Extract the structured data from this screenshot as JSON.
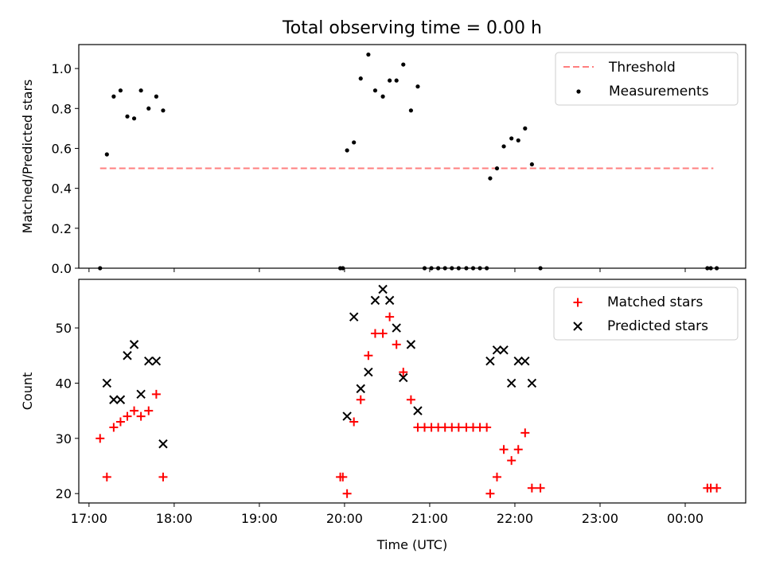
{
  "title": "Total observing time = 0.00 h",
  "colors": {
    "threshold": "#ff7f7f",
    "measurement": "#000000",
    "matched": "#ff0000",
    "predicted": "#000000"
  },
  "chart_data": [
    {
      "type": "scatter",
      "ylabel": "Matched/Predicted stars",
      "xlim": [
        16.88,
        24.71
      ],
      "ylim": [
        0.0,
        1.12
      ],
      "yticks": [
        {
          "v": 0.0,
          "label": "0.0"
        },
        {
          "v": 0.2,
          "label": "0.2"
        },
        {
          "v": 0.4,
          "label": "0.4"
        },
        {
          "v": 0.6,
          "label": "0.6"
        },
        {
          "v": 0.8,
          "label": "0.8"
        },
        {
          "v": 1.0,
          "label": "1.0"
        }
      ],
      "legend": {
        "placement": "upper right",
        "entries": [
          "Threshold",
          "Measurements"
        ]
      },
      "threshold": {
        "name": "Threshold",
        "x": [
          17.13,
          24.33
        ],
        "y": 0.5
      },
      "series": [
        {
          "name": "Measurements",
          "x": [
            17.13,
            17.21,
            17.29,
            17.37,
            17.45,
            17.53,
            17.61,
            17.7,
            17.79,
            17.87,
            19.95,
            19.98,
            20.03,
            20.11,
            20.19,
            20.28,
            20.36,
            20.45,
            20.53,
            20.61,
            20.69,
            20.78,
            20.86,
            20.94,
            21.02,
            21.1,
            21.18,
            21.26,
            21.34,
            21.43,
            21.51,
            21.59,
            21.67,
            21.71,
            21.79,
            21.87,
            21.96,
            22.04,
            22.12,
            22.2,
            22.3,
            24.26,
            24.3,
            24.37
          ],
          "y": [
            0.0,
            0.57,
            0.86,
            0.89,
            0.76,
            0.75,
            0.89,
            0.8,
            0.86,
            0.79,
            0.0,
            0.0,
            0.59,
            0.63,
            0.95,
            1.07,
            0.89,
            0.86,
            0.94,
            0.94,
            1.02,
            0.79,
            0.91,
            0.0,
            0.0,
            0.0,
            0.0,
            0.0,
            0.0,
            0.0,
            0.0,
            0.0,
            0.0,
            0.45,
            0.5,
            0.61,
            0.65,
            0.64,
            0.7,
            0.52,
            0.0,
            0.0,
            0.0,
            0.0
          ]
        }
      ]
    },
    {
      "type": "scatter",
      "xlabel": "Time (UTC)",
      "ylabel": "Count",
      "xlim": [
        16.88,
        24.71
      ],
      "ylim": [
        18.3,
        58.8
      ],
      "yticks": [
        {
          "v": 20,
          "label": "20"
        },
        {
          "v": 30,
          "label": "30"
        },
        {
          "v": 40,
          "label": "40"
        },
        {
          "v": 50,
          "label": "50"
        }
      ],
      "xticks": [
        {
          "v": 17,
          "label": "17:00"
        },
        {
          "v": 18,
          "label": "18:00"
        },
        {
          "v": 19,
          "label": "19:00"
        },
        {
          "v": 20,
          "label": "20:00"
        },
        {
          "v": 21,
          "label": "21:00"
        },
        {
          "v": 22,
          "label": "22:00"
        },
        {
          "v": 23,
          "label": "23:00"
        },
        {
          "v": 24,
          "label": "00:00"
        }
      ],
      "legend": {
        "placement": "upper right",
        "entries": [
          "Matched stars",
          "Predicted stars"
        ]
      },
      "series": [
        {
          "name": "Matched stars",
          "marker": "plus",
          "x": [
            17.13,
            17.21,
            17.29,
            17.37,
            17.45,
            17.53,
            17.61,
            17.7,
            17.79,
            17.87,
            19.95,
            19.98,
            20.03,
            20.11,
            20.19,
            20.28,
            20.36,
            20.45,
            20.53,
            20.61,
            20.69,
            20.78,
            20.86,
            20.94,
            21.02,
            21.1,
            21.18,
            21.26,
            21.34,
            21.43,
            21.51,
            21.59,
            21.67,
            21.71,
            21.79,
            21.87,
            21.96,
            22.04,
            22.12,
            22.2,
            22.3,
            24.26,
            24.3,
            24.37
          ],
          "y": [
            30,
            23,
            32,
            33,
            34,
            35,
            34,
            35,
            38,
            23,
            23,
            23,
            20,
            33,
            37,
            45,
            49,
            49,
            52,
            47,
            42,
            37,
            32,
            32,
            32,
            32,
            32,
            32,
            32,
            32,
            32,
            32,
            32,
            20,
            23,
            28,
            26,
            28,
            31,
            21,
            21,
            21,
            21,
            21
          ]
        },
        {
          "name": "Predicted stars",
          "marker": "x",
          "x": [
            17.21,
            17.29,
            17.37,
            17.45,
            17.53,
            17.61,
            17.7,
            17.79,
            17.87,
            20.03,
            20.11,
            20.19,
            20.28,
            20.36,
            20.45,
            20.53,
            20.61,
            20.69,
            20.78,
            20.86,
            21.71,
            21.79,
            21.87,
            21.96,
            22.04,
            22.12,
            22.2
          ],
          "y": [
            40,
            37,
            37,
            45,
            47,
            38,
            44,
            44,
            29,
            34,
            52,
            39,
            42,
            55,
            57,
            55,
            50,
            41,
            47,
            35,
            44,
            46,
            46,
            40,
            44,
            44,
            40
          ]
        }
      ]
    }
  ]
}
